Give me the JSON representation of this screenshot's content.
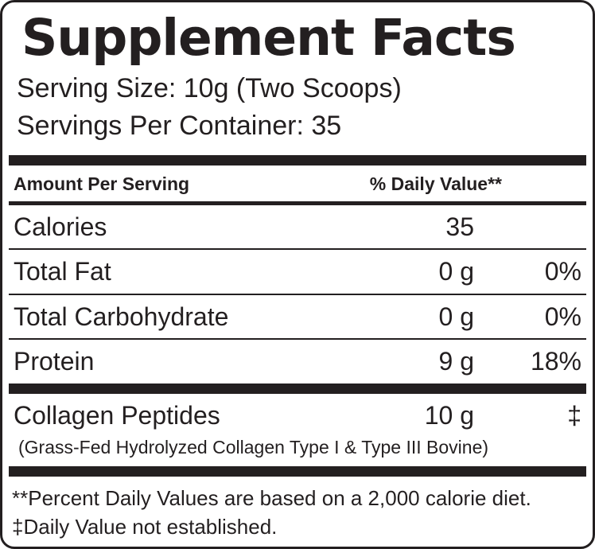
{
  "colors": {
    "ink": "#231f20",
    "background": "#ffffff"
  },
  "label": {
    "title": "Supplement Facts",
    "serving_size": "Serving Size: 10g (Two Scoops)",
    "servings_per_container": "Servings Per Container: 35",
    "header": {
      "amount_per_serving": "Amount Per Serving",
      "daily_value": "% Daily Value**"
    },
    "rows": [
      {
        "name": "Calories",
        "amount": "35",
        "dv": ""
      },
      {
        "name": "Total Fat",
        "amount": "0 g",
        "dv": "0%"
      },
      {
        "name": "Total Carbohydrate",
        "amount": "0 g",
        "dv": "0%"
      },
      {
        "name": "Protein",
        "amount": "9 g",
        "dv": "18%"
      }
    ],
    "ingredient": {
      "name": "Collagen Peptides",
      "amount": "10 g",
      "dv": "‡",
      "description": "(Grass-Fed Hydrolyzed Collagen Type I & Type III Bovine)"
    },
    "footnotes": [
      "**Percent Daily Values are based on a 2,000 calorie diet.",
      "‡Daily Value not established."
    ]
  }
}
